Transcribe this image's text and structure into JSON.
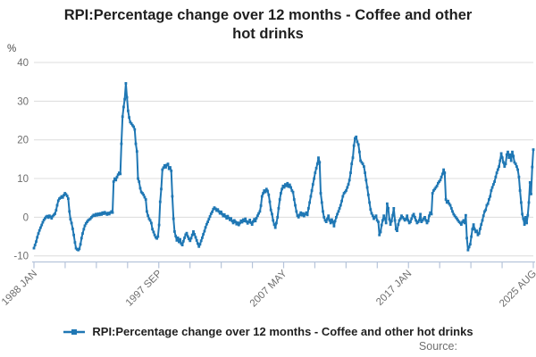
{
  "title": {
    "text": "RPI:Percentage change over 12 months - Coffee and other hot drinks"
  },
  "y_axis": {
    "unit": "%",
    "ticks": [
      40,
      30,
      20,
      10,
      0,
      -10
    ],
    "min": -10,
    "max": 40
  },
  "x_axis": {
    "minor_tick_count": 17,
    "labels": [
      {
        "tick": 0,
        "text": "1988 JAN"
      },
      {
        "tick": 4,
        "text": "1997 SEP"
      },
      {
        "tick": 8,
        "text": "2007 MAY"
      },
      {
        "tick": 12,
        "text": "2017 JAN"
      },
      {
        "tick": 16,
        "text": "2025 AUG"
      }
    ]
  },
  "legend": {
    "label": "RPI:Percentage change over 12 months - Coffee and other hot drinks"
  },
  "source": {
    "text": "Source:"
  },
  "colors": {
    "line": "#1f77b4",
    "grid": "#dcdcdc",
    "axis": "#b6c4da",
    "tick_text": "#6e6e6e"
  },
  "chart_data": {
    "type": "line",
    "title": "RPI:Percentage change over 12 months - Coffee and other hot drinks",
    "ylabel": "%",
    "ylim": [
      -10,
      40
    ],
    "grid": "horizontal",
    "legend_position": "bottom",
    "x_tick_labels": [
      "1988 JAN",
      "1997 SEP",
      "2007 MAY",
      "2017 JAN",
      "2025 AUG"
    ],
    "series": [
      {
        "name": "RPI:Percentage change over 12 months - Coffee and other hot drinks",
        "color": "#1f77b4",
        "start": "1988 JAN",
        "end": "2025 AUG",
        "frequency": "monthly",
        "values": [
          -8.0,
          -7.2,
          -6.3,
          -5.2,
          -4.2,
          -3.4,
          -2.7,
          -2.0,
          -1.3,
          -0.7,
          -0.3,
          0.1,
          0.3,
          -0.1,
          0.4,
          0.1,
          -0.3,
          0.3,
          0.6,
          0.9,
          1.8,
          3.1,
          4.3,
          4.8,
          5.0,
          5.4,
          5.1,
          5.7,
          6.2,
          5.9,
          5.5,
          4.8,
          1.5,
          -0.5,
          -1.5,
          -3.0,
          -4.6,
          -6.5,
          -8.0,
          -8.3,
          -8.5,
          -8.2,
          -7.0,
          -5.4,
          -4.2,
          -3.1,
          -2.2,
          -1.6,
          -1.2,
          -0.8,
          -0.6,
          -0.4,
          0.0,
          0.3,
          0.6,
          0.4,
          0.8,
          0.5,
          0.9,
          0.6,
          1.0,
          0.7,
          1.2,
          0.9,
          1.3,
          1.0,
          0.7,
          1.1,
          0.8,
          1.2,
          1.5,
          1.2,
          9.2,
          10.0,
          9.6,
          10.4,
          11.0,
          11.5,
          11.2,
          19.0,
          26.0,
          28.5,
          30.5,
          34.6,
          31.0,
          27.5,
          25.8,
          24.6,
          24.2,
          23.8,
          23.4,
          22.7,
          19.0,
          17.0,
          10.0,
          9.2,
          7.5,
          6.5,
          6.2,
          5.8,
          5.2,
          4.6,
          1.5,
          0.4,
          -0.4,
          -0.8,
          -1.5,
          -3.1,
          -3.8,
          -4.6,
          -5.2,
          -5.5,
          -5.0,
          -2.0,
          4.0,
          7.3,
          12.3,
          12.8,
          13.4,
          12.9,
          13.5,
          13.8,
          12.5,
          12.9,
          12.0,
          5.4,
          -0.4,
          -3.7,
          -4.9,
          -6.0,
          -5.3,
          -6.4,
          -5.7,
          -6.8,
          -7.2,
          -6.2,
          -5.3,
          -4.5,
          -4.1,
          -5.0,
          -5.6,
          -6.1,
          -5.4,
          -4.6,
          -3.7,
          -4.4,
          -5.2,
          -6.0,
          -6.8,
          -7.6,
          -7.0,
          -6.1,
          -5.3,
          -4.4,
          -3.6,
          -2.6,
          -1.8,
          -1.2,
          -0.5,
          0.2,
          0.9,
          1.4,
          2.1,
          2.5,
          2.2,
          1.7,
          2.0,
          1.5,
          1.0,
          1.4,
          0.8,
          0.3,
          0.7,
          0.2,
          -0.3,
          0.3,
          -0.2,
          -0.7,
          -0.3,
          -1.0,
          -1.5,
          -0.8,
          -1.2,
          -1.8,
          -1.4,
          -2.0,
          -1.5,
          -0.9,
          -1.3,
          -0.6,
          -1.0,
          -0.4,
          -1.1,
          -1.6,
          -1.2,
          -0.7,
          -1.4,
          -1.9,
          -1.1,
          -0.5,
          -1.0,
          -0.2,
          0.4,
          1.0,
          1.5,
          3.0,
          5.4,
          6.2,
          6.9,
          6.5,
          7.3,
          6.8,
          5.8,
          4.0,
          1.9,
          0.8,
          -0.8,
          -1.9,
          -2.7,
          -1.5,
          0.0,
          2.3,
          4.6,
          6.2,
          7.3,
          8.1,
          7.7,
          8.5,
          8.1,
          8.8,
          7.9,
          8.4,
          7.7,
          6.9,
          6.5,
          4.6,
          3.1,
          1.5,
          0.4,
          0.0,
          0.6,
          1.2,
          0.5,
          1.0,
          0.3,
          0.8,
          1.2,
          0.6,
          2.3,
          3.8,
          5.4,
          6.9,
          8.5,
          10.0,
          11.5,
          12.7,
          13.8,
          15.4,
          14.2,
          6.2,
          3.8,
          1.5,
          0.0,
          -0.8,
          -1.2,
          -0.4,
          0.4,
          -0.8,
          -1.5,
          -0.6,
          -1.2,
          -2.3,
          -1.0,
          0.0,
          0.8,
          1.5,
          2.3,
          3.1,
          4.2,
          5.4,
          6.2,
          6.5,
          6.9,
          7.7,
          8.5,
          9.6,
          11.5,
          13.8,
          15.4,
          18.5,
          20.4,
          20.8,
          19.5,
          18.8,
          16.9,
          14.6,
          14.2,
          13.8,
          13.1,
          11.5,
          9.6,
          7.7,
          5.8,
          3.8,
          2.0,
          1.0,
          0.4,
          -0.4,
          0.0,
          0.4,
          -0.8,
          -1.2,
          -4.6,
          -3.8,
          -2.0,
          -0.8,
          0.4,
          -0.4,
          -1.5,
          3.5,
          2.3,
          -0.5,
          -1.9,
          -1.0,
          0.5,
          2.3,
          -0.8,
          -3.1,
          -3.5,
          -1.9,
          -0.8,
          -0.4,
          0.4,
          0.0,
          -0.4,
          -0.8,
          -0.5,
          0.4,
          -0.8,
          -1.5,
          -1.2,
          -0.4,
          0.4,
          0.8,
          0.0,
          -0.8,
          -1.5,
          -1.2,
          -0.8,
          0.8,
          -1.2,
          -0.8,
          -0.4,
          0.0,
          -0.8,
          -1.5,
          -1.0,
          0.4,
          1.2,
          0.8,
          6.2,
          6.9,
          7.3,
          7.7,
          8.1,
          8.8,
          9.2,
          9.6,
          10.4,
          11.2,
          12.3,
          11.5,
          4.6,
          3.8,
          4.2,
          3.5,
          3.1,
          2.3,
          1.5,
          0.8,
          0.4,
          0.0,
          -0.4,
          -0.8,
          -1.2,
          -1.5,
          -1.9,
          -1.2,
          -0.8,
          -1.5,
          0.5,
          -5.4,
          -8.5,
          -7.7,
          -7.0,
          -5.0,
          -3.1,
          -1.9,
          -3.1,
          -3.8,
          -3.5,
          -4.6,
          -4.2,
          -3.0,
          -1.9,
          -0.8,
          0.4,
          1.5,
          1.9,
          3.1,
          3.5,
          4.6,
          5.4,
          6.9,
          7.7,
          8.5,
          9.2,
          10.4,
          11.5,
          12.3,
          13.1,
          14.6,
          16.5,
          15.4,
          14.2,
          13.1,
          13.8,
          16.2,
          16.9,
          15.4,
          16.2,
          14.6,
          16.9,
          15.8,
          14.2,
          13.8,
          13.1,
          12.3,
          10.4,
          6.9,
          3.8,
          0.8,
          -0.4,
          -1.9,
          0.0,
          -1.5,
          0.5,
          3.8,
          9.0,
          6.0,
          13.0,
          17.5
        ]
      }
    ]
  }
}
